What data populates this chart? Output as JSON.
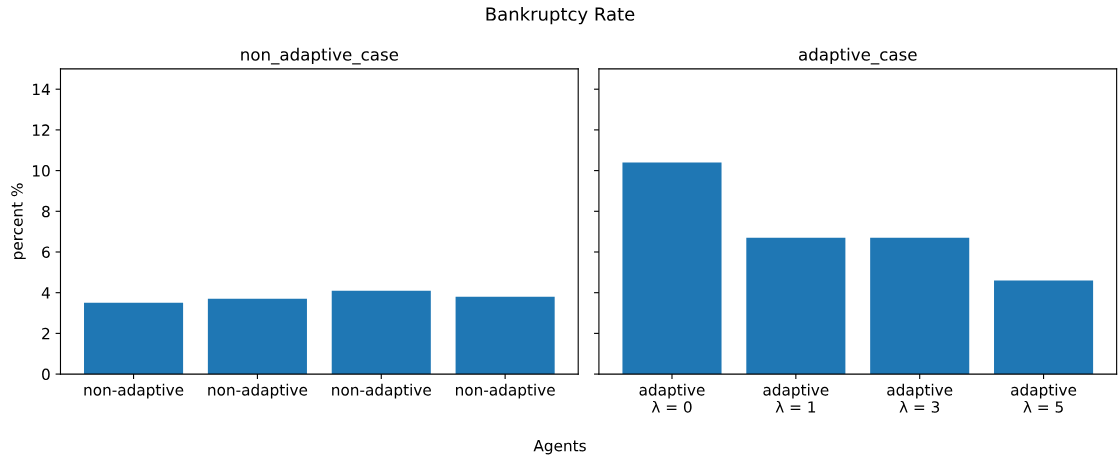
{
  "chart_data": [
    {
      "type": "bar",
      "title": "non_adaptive_case",
      "ylabel": "percent %",
      "xlabel": "Agents",
      "annotations": [
        "Bankruptcy Rate"
      ],
      "categories": [
        "non-adaptive",
        "non-adaptive",
        "non-adaptive",
        "non-adaptive"
      ],
      "values": [
        3.5,
        3.7,
        4.1,
        3.8
      ],
      "color": "#1f77b4",
      "ylim": [
        0,
        15
      ],
      "yticks": [
        0,
        2,
        4,
        6,
        8,
        10,
        12,
        14
      ],
      "grid": false
    },
    {
      "type": "bar",
      "title": "adaptive_case",
      "categories": [
        "adaptive\nλ = 0",
        "adaptive\nλ = 1",
        "adaptive\nλ = 3",
        "adaptive\nλ = 5"
      ],
      "values": [
        10.4,
        6.7,
        6.7,
        4.6
      ],
      "color": "#1f77b4",
      "ylim": [
        0,
        15
      ],
      "yticks": [
        0,
        2,
        4,
        6,
        8,
        10,
        12,
        14
      ],
      "grid": false,
      "tick_labels": "x"
    }
  ]
}
